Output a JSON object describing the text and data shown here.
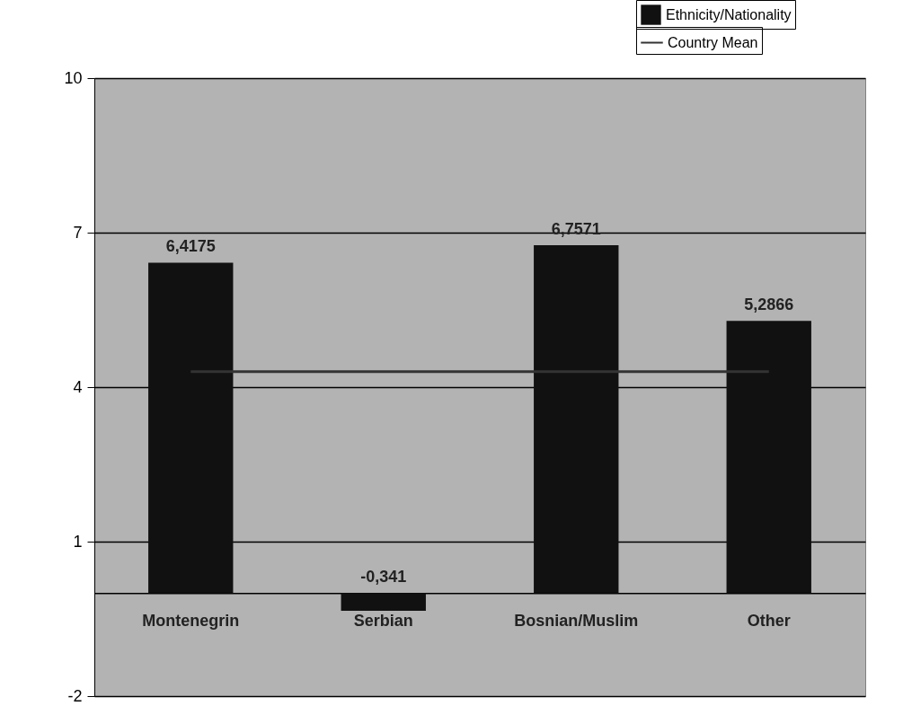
{
  "chart_data": {
    "type": "bar",
    "categories": [
      "Montenegrin",
      "Serbian",
      "Bosnian/Muslim",
      "Other"
    ],
    "series": [
      {
        "name": "Ethnicity/Nationality",
        "color": "#111111",
        "values": [
          6.4175,
          -0.341,
          6.7571,
          5.2866
        ],
        "value_labels": [
          "6,4175",
          "-0,341",
          "6,7571",
          "5,2866"
        ]
      },
      {
        "name": "Country Mean",
        "type": "line",
        "color": "#333333",
        "values": [
          4.3,
          4.3,
          4.3,
          4.3
        ]
      }
    ],
    "ylim": [
      -2,
      10
    ],
    "yticks": [
      -2,
      1,
      4,
      7,
      10
    ],
    "grid": "y",
    "legend": "top right"
  }
}
